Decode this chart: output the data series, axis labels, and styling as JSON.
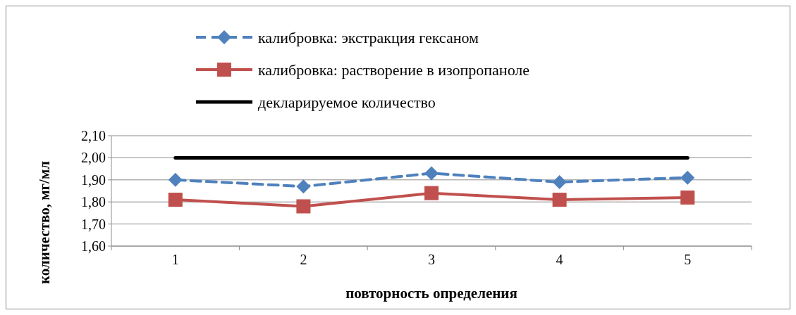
{
  "chart_data": {
    "type": "line",
    "xlabel": "повторность определения",
    "ylabel": "количество, мг/мл",
    "categories": [
      "1",
      "2",
      "3",
      "4",
      "5"
    ],
    "series": [
      {
        "name": "калибровка: экстракция гексаном",
        "color": "#4f81bd",
        "values": [
          1.9,
          1.87,
          1.93,
          1.89,
          1.91
        ],
        "marker": "diamond",
        "line_style": "dashed"
      },
      {
        "name": "калибровка: растворение в изопропаноле",
        "color": "#c0504d",
        "values": [
          1.81,
          1.78,
          1.84,
          1.81,
          1.82
        ],
        "marker": "square",
        "line_style": "solid"
      },
      {
        "name": "декларируемое количество",
        "color": "#000000",
        "values": [
          2.0,
          2.0,
          2.0,
          2.0,
          2.0
        ],
        "marker": "none",
        "line_style": "solid"
      }
    ],
    "ylim": [
      1.6,
      2.1
    ],
    "yticks": [
      {
        "value": 1.6,
        "label": "1,60"
      },
      {
        "value": 1.7,
        "label": "1,70"
      },
      {
        "value": 1.8,
        "label": "1,80"
      },
      {
        "value": 1.9,
        "label": "1,90"
      },
      {
        "value": 2.0,
        "label": "2,00"
      },
      {
        "value": 2.1,
        "label": "2,10"
      }
    ],
    "grid": "y",
    "legend": "top"
  }
}
